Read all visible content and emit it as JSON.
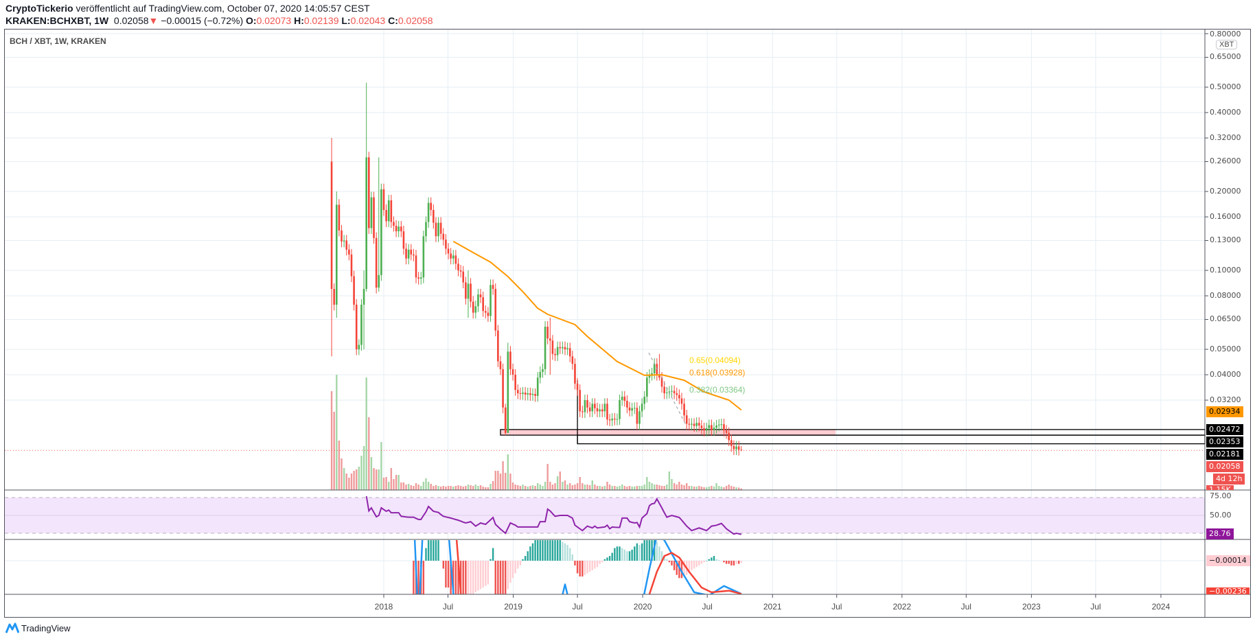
{
  "header": {
    "author": "CryptoTickerio",
    "published": "veröffentlicht auf TradingView.com, October 07, 2020 14:05:57 CEST",
    "symbol": "KRAKEN:BCHXBT, 1W",
    "last": "0.02058",
    "change": "−0.00015 (−0.72%)",
    "open_label": "O:",
    "open": "0.02073",
    "high_label": "H:",
    "high": "0.02139",
    "low_label": "L:",
    "low": "0.02043",
    "close_label": "C:",
    "close": "0.02058",
    "direction_icon": "triangle-down-icon"
  },
  "legend": "BCH / XBT, 1W, KRAKEN",
  "currency_badge": "XBT",
  "footer": {
    "brand": "TradingView",
    "icon": "tradingview-logo-icon"
  },
  "colors": {
    "up": "#4caf50",
    "down": "#f44336",
    "ma": "#ff9800",
    "rsi": "#8e24aa",
    "macd": "#2196f3",
    "signal": "#f44336",
    "grid": "#e6eef3",
    "zone": "#ffcdd2"
  },
  "badges": {
    "ma": "0.02934",
    "level1": "0.02472",
    "level2": "0.02353",
    "level3": "0.02181",
    "price": "0.02058",
    "countdown": "4d 12h",
    "volume": "1.15K",
    "rsi": "28.76",
    "macd_hist": "−0.00014",
    "macd_low": "−0.00236"
  },
  "fib_labels": {
    "l065": "0.65(0.04094)",
    "l0618": "0.618(0.03928)",
    "l0382": "0.382(0.03364)"
  },
  "chart_data": {
    "type": "candlestick",
    "interval": "1W",
    "scale": "log",
    "grid": true,
    "price_axis": {
      "ticks": [
        "0.80000",
        "0.65000",
        "0.50000",
        "0.40000",
        "0.32000",
        "0.26000",
        "0.20000",
        "0.16000",
        "0.13000",
        "0.10000",
        "0.08000",
        "0.06500",
        "0.05000",
        "0.04000",
        "0.03200"
      ]
    },
    "time_axis": {
      "ticks": [
        {
          "label": "2018",
          "date": "2018-01-01"
        },
        {
          "label": "Jul",
          "date": "2018-07-01"
        },
        {
          "label": "2019",
          "date": "2019-01-01"
        },
        {
          "label": "Jul",
          "date": "2019-07-01"
        },
        {
          "label": "2020",
          "date": "2020-01-01"
        },
        {
          "label": "Jul",
          "date": "2020-07-01"
        },
        {
          "label": "2021",
          "date": "2021-01-01"
        },
        {
          "label": "Jul",
          "date": "2021-07-01"
        },
        {
          "label": "2022",
          "date": "2022-01-01"
        },
        {
          "label": "Jul",
          "date": "2022-07-01"
        },
        {
          "label": "2023",
          "date": "2023-01-01"
        },
        {
          "label": "Jul",
          "date": "2023-07-01"
        },
        {
          "label": "2024",
          "date": "2024-01-01"
        }
      ]
    },
    "first_open": 0.26,
    "weekly": {
      "dates": [
        "2017-08-07",
        "2017-08-14",
        "2017-08-21",
        "2017-08-28",
        "2017-09-04",
        "2017-09-11",
        "2017-09-18",
        "2017-09-25",
        "2017-10-02",
        "2017-10-09",
        "2017-10-16",
        "2017-10-23",
        "2017-10-30",
        "2017-11-06",
        "2017-11-13",
        "2017-11-20",
        "2017-11-27",
        "2017-12-04",
        "2017-12-11",
        "2017-12-18",
        "2017-12-25",
        "2018-01-01",
        "2018-01-08",
        "2018-01-15",
        "2018-01-22",
        "2018-01-29",
        "2018-02-05",
        "2018-02-12",
        "2018-02-19",
        "2018-02-26",
        "2018-03-05",
        "2018-03-12",
        "2018-03-19",
        "2018-03-26",
        "2018-04-02",
        "2018-04-09",
        "2018-04-16",
        "2018-04-23",
        "2018-04-30",
        "2018-05-07",
        "2018-05-14",
        "2018-05-21",
        "2018-05-28",
        "2018-06-04",
        "2018-06-11",
        "2018-06-18",
        "2018-06-25",
        "2018-07-02",
        "2018-07-09",
        "2018-07-16",
        "2018-07-23",
        "2018-07-30",
        "2018-08-06",
        "2018-08-13",
        "2018-08-20",
        "2018-08-27",
        "2018-09-03",
        "2018-09-10",
        "2018-09-17",
        "2018-09-24",
        "2018-10-01",
        "2018-10-08",
        "2018-10-15",
        "2018-10-22",
        "2018-10-29",
        "2018-11-05",
        "2018-11-12",
        "2018-11-19",
        "2018-11-26",
        "2018-12-03",
        "2018-12-10",
        "2018-12-17",
        "2018-12-24",
        "2018-12-31",
        "2019-01-07",
        "2019-01-14",
        "2019-01-21",
        "2019-01-28",
        "2019-02-04",
        "2019-02-11",
        "2019-02-18",
        "2019-02-25",
        "2019-03-04",
        "2019-03-11",
        "2019-03-18",
        "2019-03-25",
        "2019-04-01",
        "2019-04-08",
        "2019-04-15",
        "2019-04-22",
        "2019-04-29",
        "2019-05-06",
        "2019-05-13",
        "2019-05-20",
        "2019-05-27",
        "2019-06-03",
        "2019-06-10",
        "2019-06-17",
        "2019-06-24",
        "2019-07-01",
        "2019-07-08",
        "2019-07-15",
        "2019-07-22",
        "2019-07-29",
        "2019-08-05",
        "2019-08-12",
        "2019-08-19",
        "2019-08-26",
        "2019-09-02",
        "2019-09-09",
        "2019-09-16",
        "2019-09-23",
        "2019-09-30",
        "2019-10-07",
        "2019-10-14",
        "2019-10-21",
        "2019-10-28",
        "2019-11-04",
        "2019-11-11",
        "2019-11-18",
        "2019-11-25",
        "2019-12-02",
        "2019-12-09",
        "2019-12-16",
        "2019-12-23",
        "2019-12-30",
        "2020-01-06",
        "2020-01-13",
        "2020-01-20",
        "2020-01-27",
        "2020-02-03",
        "2020-02-10",
        "2020-02-17",
        "2020-02-24",
        "2020-03-02",
        "2020-03-09",
        "2020-03-16",
        "2020-03-23",
        "2020-03-30",
        "2020-04-06",
        "2020-04-13",
        "2020-04-20",
        "2020-04-27",
        "2020-05-04",
        "2020-05-11",
        "2020-05-18",
        "2020-05-25",
        "2020-06-01",
        "2020-06-08",
        "2020-06-15",
        "2020-06-22",
        "2020-06-29",
        "2020-07-06",
        "2020-07-13",
        "2020-07-20",
        "2020-07-27",
        "2020-08-03",
        "2020-08-10",
        "2020-08-17",
        "2020-08-24",
        "2020-08-31",
        "2020-09-07",
        "2020-09-14",
        "2020-09-21",
        "2020-09-28",
        "2020-10-05"
      ],
      "close": [
        0.085,
        0.074,
        0.178,
        0.142,
        0.129,
        0.13,
        0.12,
        0.115,
        0.095,
        0.074,
        0.05,
        0.052,
        0.074,
        0.085,
        0.27,
        0.145,
        0.19,
        0.133,
        0.086,
        0.096,
        0.204,
        0.17,
        0.154,
        0.185,
        0.153,
        0.148,
        0.141,
        0.147,
        0.141,
        0.121,
        0.111,
        0.12,
        0.115,
        0.114,
        0.094,
        0.093,
        0.094,
        0.135,
        0.153,
        0.181,
        0.17,
        0.152,
        0.135,
        0.152,
        0.138,
        0.131,
        0.121,
        0.116,
        0.111,
        0.114,
        0.106,
        0.1,
        0.099,
        0.09,
        0.078,
        0.089,
        0.076,
        0.069,
        0.073,
        0.081,
        0.079,
        0.07,
        0.069,
        0.067,
        0.088,
        0.085,
        0.059,
        0.045,
        0.042,
        0.03,
        0.024,
        0.049,
        0.042,
        0.04,
        0.035,
        0.034,
        0.0338,
        0.0342,
        0.0336,
        0.034,
        0.0335,
        0.0338,
        0.0332,
        0.039,
        0.041,
        0.042,
        0.061,
        0.055,
        0.054,
        0.048,
        0.0475,
        0.051,
        0.0505,
        0.051,
        0.05,
        0.0505,
        0.047,
        0.044,
        0.037,
        0.035,
        0.029,
        0.0288,
        0.032,
        0.03,
        0.029,
        0.031,
        0.0298,
        0.029,
        0.0295,
        0.029,
        0.031,
        0.027,
        0.0268,
        0.0272,
        0.027,
        0.0271,
        0.032,
        0.033,
        0.0318,
        0.03,
        0.0292,
        0.0298,
        0.0299,
        0.026,
        0.029,
        0.031,
        0.033,
        0.039,
        0.04,
        0.0405,
        0.044,
        0.04,
        0.039,
        0.036,
        0.034,
        0.0342,
        0.0345,
        0.0347,
        0.034,
        0.0335,
        0.0325,
        0.031,
        0.028,
        0.026,
        0.0258,
        0.026,
        0.0255,
        0.0262,
        0.0256,
        0.025,
        0.0245,
        0.025,
        0.0257,
        0.0246,
        0.0251,
        0.0256,
        0.0258,
        0.0259,
        0.0245,
        0.024,
        0.0225,
        0.0214,
        0.0208,
        0.0213,
        0.0207,
        0.02058
      ],
      "volume_k": [
        72,
        57,
        84,
        36,
        23,
        16,
        12,
        9,
        12,
        14,
        15,
        17,
        25,
        32,
        82,
        53,
        24,
        16,
        15,
        15,
        35,
        9,
        9.5,
        6,
        16,
        8,
        11,
        11,
        5.5,
        5.5,
        4,
        4.5,
        3.5,
        3,
        5,
        4,
        3,
        6,
        8.5,
        6,
        4.5,
        3,
        3.5,
        3,
        2.5,
        3,
        2.5,
        3,
        3,
        2.5,
        3,
        3.5,
        3,
        2.5,
        3,
        4,
        3.5,
        3,
        4,
        3,
        3.5,
        2.5,
        2,
        2,
        4.5,
        6.5,
        14,
        14,
        12,
        21,
        12.5,
        26,
        12,
        5.5,
        4,
        3.5,
        3,
        4,
        3,
        2.5,
        3,
        3.5,
        3,
        5,
        4,
        3,
        6,
        19,
        6,
        4,
        5,
        10,
        13.5,
        6,
        7,
        4,
        5,
        3.5,
        4,
        5,
        9.5,
        5,
        4,
        4,
        3.5,
        7,
        4,
        3,
        3,
        2.5,
        3,
        6,
        4,
        3,
        3,
        2.5,
        3,
        4,
        3,
        2.5,
        3,
        2.5,
        2.5,
        3,
        3,
        3,
        4,
        9.5,
        6,
        5,
        4,
        4,
        3.5,
        3,
        3,
        4,
        13.5,
        8,
        5,
        4,
        6,
        4,
        3.5,
        5,
        3,
        3,
        2.5,
        2.5,
        3,
        2.5,
        2,
        2,
        2.5,
        3,
        2.5,
        5,
        3,
        2.5,
        2,
        3,
        4,
        3,
        2.5,
        2,
        1.8,
        1.15
      ],
      "rsi": [
        null,
        null,
        null,
        null,
        null,
        null,
        null,
        null,
        null,
        null,
        null,
        null,
        null,
        null,
        71.5,
        55,
        58.5,
        53.5,
        48.5,
        50,
        58.5,
        56.5,
        54.6,
        56,
        53,
        53,
        53,
        53,
        49,
        48.7,
        48.3,
        48,
        48,
        48,
        46.7,
        45.5,
        45.5,
        50,
        54,
        60,
        57.3,
        54.6,
        54,
        53.3,
        51,
        49,
        48.3,
        47.7,
        47,
        46.2,
        45.4,
        44.6,
        43.6,
        42.5,
        41.5,
        42.2,
        43,
        40.5,
        38,
        39.7,
        41.5,
        40.7,
        40,
        42.5,
        45,
        47.7,
        40,
        37.3,
        34.6,
        32.3,
        30,
        35.7,
        41.5,
        40.2,
        39,
        37,
        37,
        37,
        37,
        37,
        37,
        37,
        37,
        37,
        43,
        43,
        43,
        57,
        55,
        52,
        49,
        49.5,
        50,
        50,
        50,
        50,
        48.5,
        47,
        39,
        37,
        35,
        33,
        35.5,
        38,
        37,
        36,
        38,
        36,
        36.3,
        36.7,
        37,
        39,
        35,
        37,
        36.8,
        36.6,
        36.5,
        47,
        47,
        47,
        43,
        42.2,
        41.5,
        42,
        37,
        47,
        49.5,
        52,
        61,
        63,
        63.5,
        68.5,
        63.5,
        58.5,
        53,
        48,
        49,
        50,
        49.2,
        48.5,
        47.7,
        44.6,
        41.3,
        38,
        35.5,
        33,
        34,
        35,
        36,
        35,
        34,
        33,
        35.5,
        38,
        38.5,
        39,
        40,
        41,
        38,
        35,
        33,
        31,
        29,
        30,
        29.4,
        28.76
      ],
      "macd_hist": [
        null,
        null,
        null,
        null,
        null,
        null,
        null,
        null,
        null,
        null,
        null,
        null,
        null,
        null,
        null,
        null,
        null,
        null,
        null,
        null,
        null,
        null,
        null,
        null,
        null,
        null,
        null,
        null,
        null,
        null,
        null,
        null,
        null,
        -0.0025,
        -0.0025,
        -0.0025,
        -0.0025,
        -0.0025,
        0.0008,
        0.0013,
        0.0013,
        0.0013,
        0.0013,
        0.0013,
        0,
        -0.0005,
        -0.0017,
        -0.0017,
        -0.0025,
        -0.0025,
        -0.0025,
        -0.0025,
        -0.0025,
        -0.0025,
        -0.0025,
        -0.0024,
        -0.0023,
        -0.0022,
        -0.002,
        -0.0019,
        -0.0018,
        -0.0017,
        -0.0016,
        -0.0015,
        0.0001,
        0.0008,
        -0.0023,
        -0.0023,
        -0.0023,
        -0.0023,
        -0.0023,
        -0.0018,
        -0.0014,
        -0.0011,
        -0.0008,
        -0.0005,
        -0.0003,
        0.0001,
        0.0003,
        0.0006,
        0.0009,
        0.0011,
        0.0013,
        0.0013,
        0.0013,
        0.0013,
        0.0013,
        0.0013,
        0.0013,
        0.0013,
        0.0013,
        0.0013,
        0.0013,
        0.0012,
        0.0011,
        0.001,
        0.0008,
        0.0004,
        -0.0003,
        -0.0008,
        -0.001,
        -0.001,
        -0.0009,
        -0.0008,
        -0.0007,
        -0.0006,
        -0.0005,
        -0.0004,
        -0.0002,
        -0.0001,
        0.0001,
        0.0002,
        0.0003,
        0.0005,
        0.0008,
        0.0009,
        0.0009,
        0.0008,
        0.0007,
        0.0006,
        0.0006,
        0.0007,
        0.0009,
        0.0011,
        0.001,
        0.0011,
        0.0013,
        0.0013,
        0.0013,
        0.0013,
        0.0013,
        0.0012,
        0.0009,
        0.0006,
        0.0003,
        0.0001,
        -0.0001,
        -0.0003,
        -0.0006,
        -0.0009,
        -0.0011,
        -0.0011,
        -0.001,
        -0.0009,
        -0.0008,
        -0.0006,
        -0.0005,
        -0.0004,
        -0.0003,
        -0.0002,
        -0.0001,
        0,
        0.0001,
        0.0002,
        0.0003,
        0.0001,
        5e-05,
        0,
        -0.0001,
        -0.0002,
        -0.0002,
        -0.0003,
        -0.0003,
        -0.0002,
        -0.0002,
        -0.00014
      ]
    },
    "wicks": [
      {
        "date": "2017-08-07",
        "high": 0.32,
        "low": 0.047
      },
      {
        "date": "2017-08-21",
        "high": 0.2,
        "low": 0.066
      },
      {
        "date": "2017-11-06",
        "high": 0.1,
        "low": 0.05
      },
      {
        "date": "2017-11-13",
        "high": 0.52,
        "low": 0.083
      },
      {
        "date": "2017-12-18",
        "high": 0.27,
        "low": 0.083
      },
      {
        "date": "2018-08-27",
        "high": 0.1,
        "low": 0.066
      },
      {
        "date": "2018-12-10",
        "high": 0.031,
        "low": 0.0235
      },
      {
        "date": "2018-12-17",
        "high": 0.053,
        "low": 0.024
      },
      {
        "date": "2019-04-15",
        "high": 0.066,
        "low": 0.04
      },
      {
        "date": "2020-02-17",
        "high": 0.048,
        "low": 0.038
      },
      {
        "date": "2020-10-05",
        "high": 0.02139,
        "low": 0.02043
      }
    ],
    "moving_average": [
      [
        "2018-07-16",
        0.129
      ],
      [
        "2018-09-10",
        0.117
      ],
      [
        "2018-10-29",
        0.1075
      ],
      [
        "2018-12-17",
        0.0947
      ],
      [
        "2019-01-28",
        0.083
      ],
      [
        "2019-03-11",
        0.0717
      ],
      [
        "2019-04-08",
        0.068
      ],
      [
        "2019-06-24",
        0.0621
      ],
      [
        "2019-07-29",
        0.056
      ],
      [
        "2019-10-21",
        0.0449
      ],
      [
        "2020-01-06",
        0.0398
      ],
      [
        "2020-02-24",
        0.04
      ],
      [
        "2020-04-27",
        0.0381
      ],
      [
        "2020-06-22",
        0.0344
      ],
      [
        "2020-08-31",
        0.032
      ],
      [
        "2020-10-05",
        0.02934
      ]
    ],
    "levels": {
      "zone_top": 0.02472,
      "zone_bottom": 0.02353,
      "support": 0.02181,
      "zone_start": "2018-11-26",
      "zone_end": "2021-06-28",
      "support_start": "2019-07-01",
      "current": 0.02058
    },
    "rsi_levels": {
      "upper": 70,
      "middle": 50,
      "lower": 30,
      "ticks": [
        "75.00",
        "50.00"
      ]
    },
    "macd_line": [
      [
        "2018-03-26",
        0.003
      ],
      [
        "2018-04-09",
        -0.004
      ],
      [
        "2018-04-23",
        0.003
      ],
      [
        "2018-07-02",
        0.002
      ],
      [
        "2018-07-23",
        -0.004
      ],
      [
        "2019-05-13",
        -0.0028
      ],
      [
        "2019-05-27",
        -0.0015
      ],
      [
        "2019-06-10",
        -0.0028
      ],
      [
        "2019-12-30",
        -0.0028
      ],
      [
        "2020-01-20",
        -0.0005
      ],
      [
        "2020-02-10",
        0.0016
      ],
      [
        "2020-03-02",
        0.0013
      ],
      [
        "2020-04-20",
        -0.0007
      ],
      [
        "2020-05-25",
        -0.002
      ],
      [
        "2020-07-06",
        -0.0022
      ],
      [
        "2020-08-17",
        -0.0016
      ],
      [
        "2020-10-05",
        -0.0021
      ]
    ],
    "signal_line": [
      [
        "2018-07-23",
        0.002
      ],
      [
        "2018-08-13",
        -0.004
      ],
      [
        "2020-01-13",
        -0.0026
      ],
      [
        "2020-02-10",
        -0.0007
      ],
      [
        "2020-03-02",
        0.0003
      ],
      [
        "2020-03-23",
        0.0005
      ],
      [
        "2020-04-13",
        0.0002
      ],
      [
        "2020-05-11",
        -0.0007
      ],
      [
        "2020-06-15",
        -0.0017
      ],
      [
        "2020-07-13",
        -0.002
      ],
      [
        "2020-08-31",
        -0.0019
      ],
      [
        "2020-10-05",
        -0.0021
      ]
    ]
  }
}
